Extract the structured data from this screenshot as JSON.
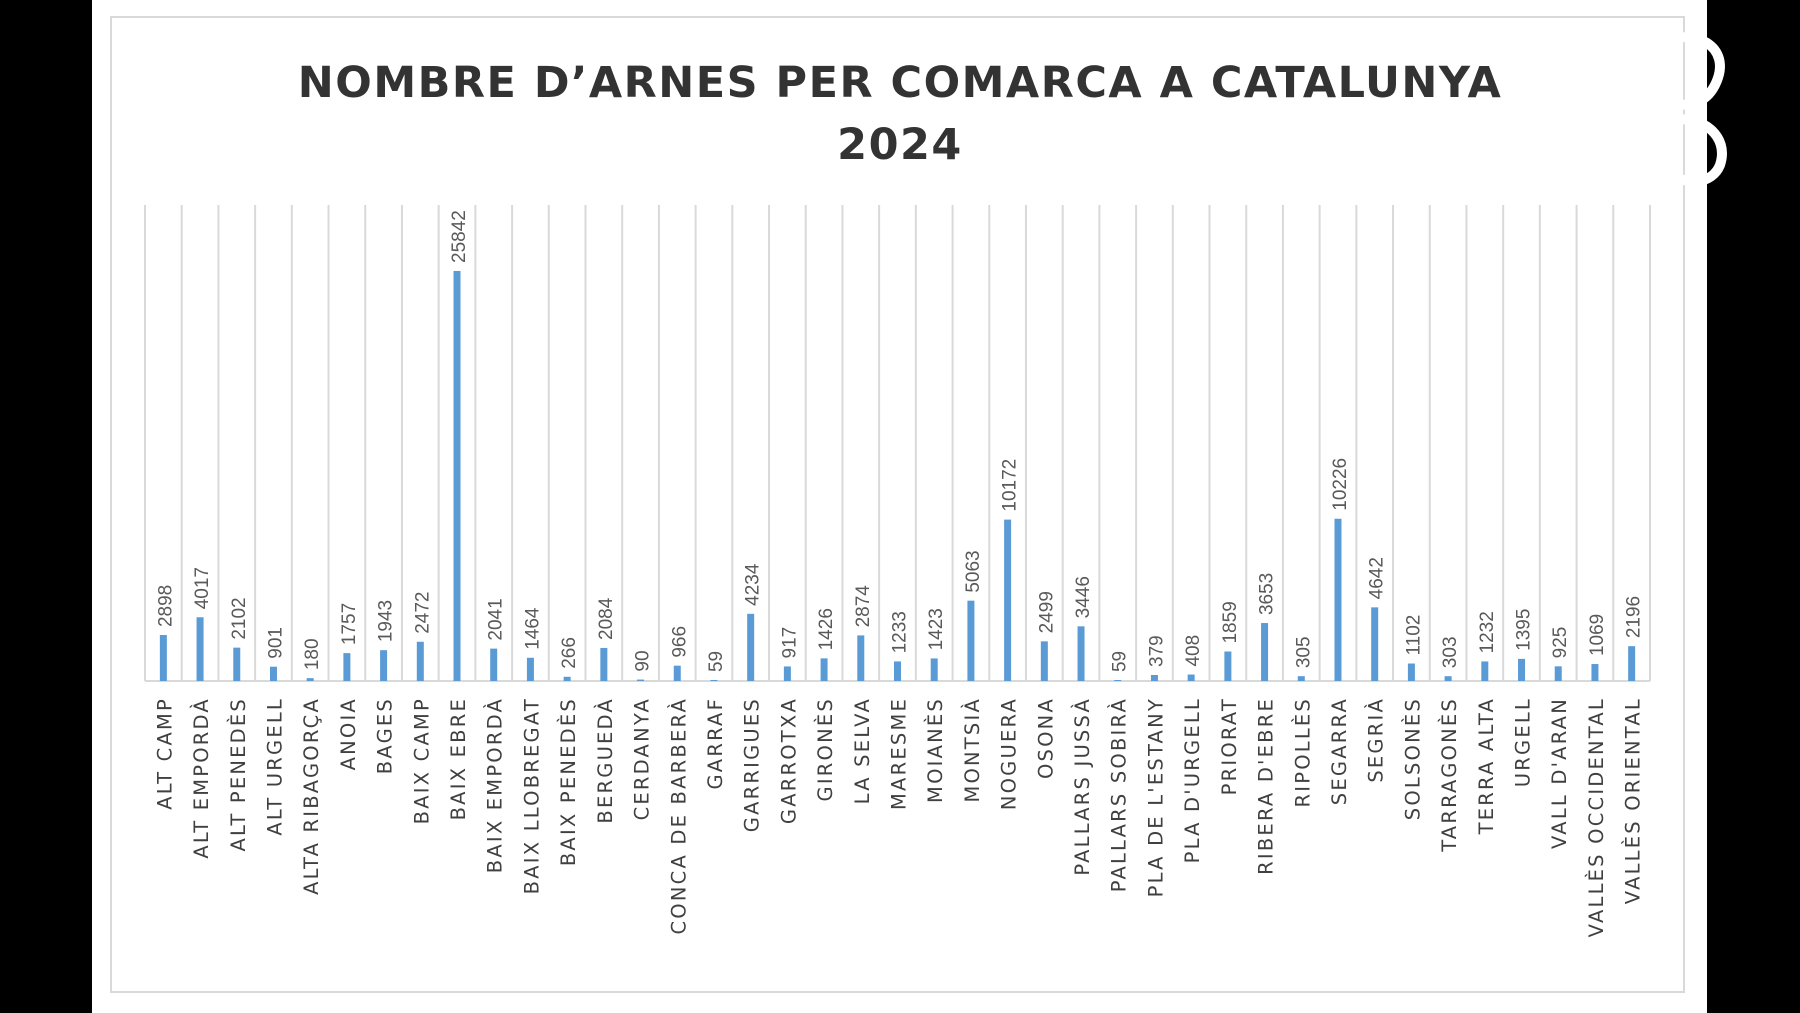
{
  "chart_data": {
    "type": "bar",
    "title": "NOMBRE D’ARNES PER COMARCA A CATALUNYA",
    "subtitle": "2024",
    "categories": [
      "ALT CAMP",
      "ALT EMPORDÀ",
      "ALT PENEDÈS",
      "ALT URGELL",
      "ALTA RIBAGORÇA",
      "ANOIA",
      "BAGES",
      "BAIX CAMP",
      "BAIX EBRE",
      "BAIX EMPORDÀ",
      "BAIX LLOBREGAT",
      "BAIX PENEDÈS",
      "BERGUEDÀ",
      "CERDANYA",
      "CONCA DE BARBERÀ",
      "GARRAF",
      "GARRIGUES",
      "GARROTXA",
      "GIRONÈS",
      "LA SELVA",
      "MARESME",
      "MOIANÈS",
      "MONTSIÀ",
      "NOGUERA",
      "OSONA",
      "PALLARS JUSSÀ",
      "PALLARS SOBIRÀ",
      "PLA DE L'ESTANY",
      "PLA D'URGELL",
      "PRIORAT",
      "RIBERA D'EBRE",
      "RIPOLLÈS",
      "SEGARRA",
      "SEGRIÀ",
      "SOLSONÈS",
      "TARRAGONÈS",
      "TERRA ALTA",
      "URGELL",
      "VALL D'ARAN",
      "VALLÈS OCCIDENTAL",
      "VALLÈS ORIENTAL"
    ],
    "values": [
      2898,
      4017,
      2102,
      901,
      180,
      1757,
      1943,
      2472,
      25842,
      2041,
      1464,
      266,
      2084,
      90,
      966,
      59,
      4234,
      917,
      1426,
      2874,
      1233,
      1423,
      5063,
      10172,
      2499,
      3446,
      59,
      379,
      408,
      1859,
      3653,
      305,
      10226,
      4642,
      1102,
      303,
      1232,
      1395,
      925,
      1069,
      2196
    ],
    "data_labels": [
      "2898",
      "4017",
      "2102",
      "901",
      "180",
      "1757",
      "1943",
      "2472",
      "25842",
      "2041",
      "1464",
      "266",
      "2084",
      "90",
      "966",
      "59",
      "4234",
      "917",
      "1426",
      "2874",
      "1233",
      "1423",
      "5063",
      "10172",
      "2499",
      "3446",
      "59",
      "379",
      "408",
      "1859",
      "3653",
      "305",
      "10226",
      "4642",
      "1102",
      "303",
      "1232",
      "1395",
      "925",
      "1069",
      "2196"
    ],
    "xlabel": "",
    "ylabel": "",
    "ylim": [
      0,
      30000
    ],
    "grid": "vertical",
    "legend": "none",
    "colors": {
      "bar": "#5b9bd5",
      "grid": "#d9d9d9",
      "text": "#595959",
      "title": "#333333",
      "background": "#ffffff"
    }
  }
}
